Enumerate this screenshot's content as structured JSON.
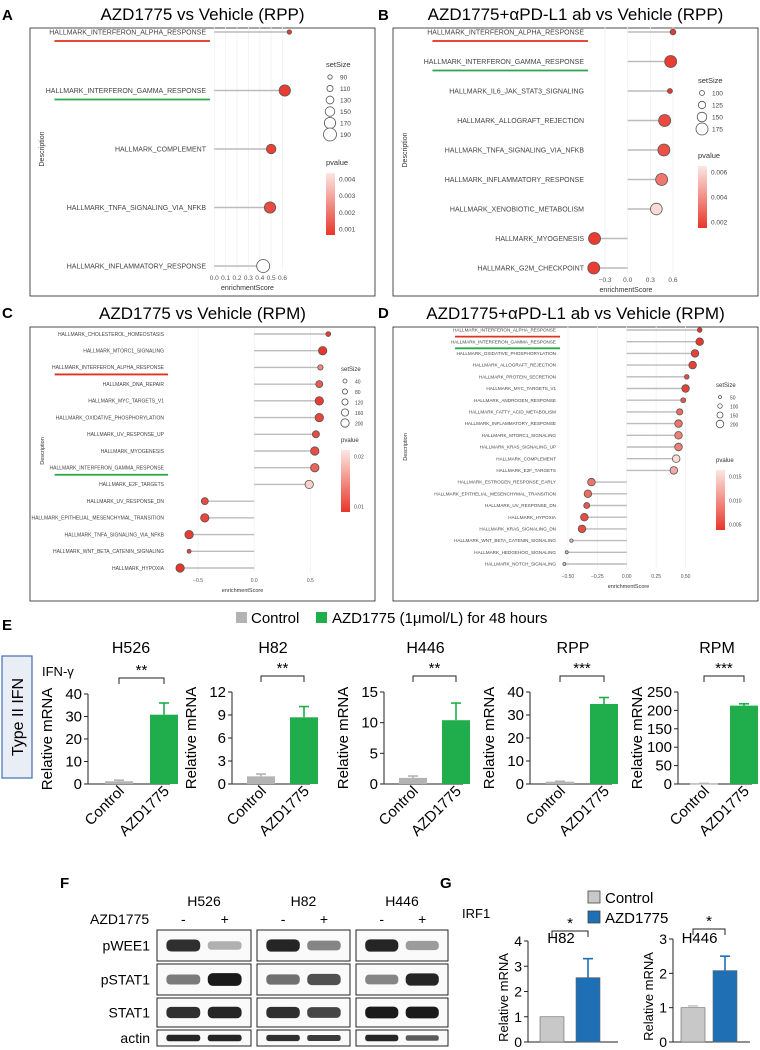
{
  "colors": {
    "control": "#b3b3b3",
    "azd_green": "#1fae4b",
    "azd_blue": "#1f6fb5",
    "underline_red": "#e0301e",
    "underline_green": "#29a84a",
    "box_border": "#3f6fb0",
    "box_fill": "#e9eef6",
    "pv_low": "#e8362b",
    "pv_high": "#fbe7e1"
  },
  "panelLabels": {
    "A": "A",
    "B": "B",
    "C": "C",
    "D": "D",
    "E": "E",
    "F": "F",
    "G": "G"
  },
  "lollipops": [
    {
      "id": "A",
      "title": "AZD1775 vs Vehicle (RPP)",
      "xlabel": "enrichmentScore",
      "ylabel": "Description",
      "xlim": [
        -0.02,
        0.78
      ],
      "xticks": [
        0.0,
        0.1,
        0.2,
        0.3,
        0.4,
        0.5,
        0.6
      ],
      "xtick_labels": [
        "0.0",
        "0.1",
        "0.2",
        "0.3",
        "0.4",
        "0.5",
        "0.6"
      ],
      "size_title": "setSize",
      "size_values": [
        "90",
        "110",
        "130",
        "150",
        "170",
        "190"
      ],
      "pv_title": "pvalue",
      "pv_ticks": [
        "0.004",
        "0.003",
        "0.002",
        "0.001"
      ],
      "terms": [
        "HALLMARK_INTERFERON_ALPHA_RESPONSE",
        "HALLMARK_INTERFERON_GAMMA_RESPONSE",
        "HALLMARK_COMPLEMENT",
        "HALLMARK_TNFA_SIGNALING_VIA_NFKB",
        "HALLMARK_INFLAMMATORY_RESPONSE"
      ],
      "scores": [
        0.66,
        0.62,
        0.5,
        0.49,
        0.43
      ],
      "set_sizes": [
        90,
        170,
        150,
        170,
        190
      ],
      "pvalues": [
        0.0003,
        0.0004,
        0.0005,
        0.0008,
        0.0048
      ],
      "underlines": {
        "0": "red",
        "1": "green"
      }
    },
    {
      "id": "B",
      "title": "AZD1775+αPD-L1 ab vs Vehicle (RPP)",
      "xlabel": "enrichmentScore",
      "ylabel": "Description",
      "xlim": [
        -0.5,
        0.72
      ],
      "xticks": [
        -0.3,
        0.0,
        0.3,
        0.6
      ],
      "xtick_labels": [
        "−0.3",
        "0.0",
        "0.3",
        "0.6"
      ],
      "size_title": "setSize",
      "size_values": [
        "100",
        "125",
        "150",
        "175"
      ],
      "pv_title": "pvalue",
      "pv_ticks": [
        "0.006",
        "0.004",
        "0.002"
      ],
      "terms": [
        "HALLMARK_INTERFERON_ALPHA_RESPONSE",
        "HALLMARK_INTERFERON_GAMMA_RESPONSE",
        "HALLMARK_IL6_JAK_STAT3_SIGNALING",
        "HALLMARK_ALLOGRAFT_REJECTION",
        "HALLMARK_TNFA_SIGNALING_VIA_NFKB",
        "HALLMARK_INFLAMMATORY_RESPONSE",
        "HALLMARK_XENOBIOTIC_METABOLISM",
        "HALLMARK_MYOGENESIS",
        "HALLMARK_G2M_CHECKPOINT"
      ],
      "scores": [
        0.6,
        0.57,
        0.56,
        0.49,
        0.48,
        0.45,
        0.38,
        -0.44,
        -0.45
      ],
      "set_sizes": [
        90,
        175,
        80,
        175,
        175,
        175,
        170,
        175,
        175
      ],
      "pvalues": [
        0.0005,
        0.0007,
        0.0005,
        0.0012,
        0.0015,
        0.003,
        0.007,
        0.0006,
        0.0007
      ],
      "underlines": {
        "0": "red",
        "1": "green"
      }
    },
    {
      "id": "C",
      "title": "AZD1775 vs Vehicle (RPM)",
      "xlabel": "enrichmentScore",
      "ylabel": "Description",
      "xlim": [
        -0.75,
        0.72
      ],
      "xticks": [
        -0.5,
        0.0,
        0.5
      ],
      "xtick_labels": [
        "−0.5",
        "0.0",
        "0.5"
      ],
      "size_title": "setSize",
      "size_values": [
        "40",
        "80",
        "120",
        "160",
        "200"
      ],
      "pv_title": "pvalue",
      "pv_ticks": [
        "0.02",
        "0.01"
      ],
      "terms": [
        "HALLMARK_CHOLESTEROL_HOMEOSTASIS",
        "HALLMARK_MTORC1_SIGNALING",
        "HALLMARK_INTERFERON_ALPHA_RESPONSE",
        "HALLMARK_DNA_REPAIR",
        "HALLMARK_MYC_TARGETS_V1",
        "HALLMARK_OXIDATIVE_PHOSPHORYLATION",
        "HALLMARK_UV_RESPONSE_UP",
        "HALLMARK_MYOGENESIS",
        "HALLMARK_INTERFERON_GAMMA_RESPONSE",
        "HALLMARK_E2F_TARGETS",
        "HALLMARK_UV_RESPONSE_DN",
        "HALLMARK_EPITHELIAL_MESENCHYMAL_TRANSITION",
        "HALLMARK_TNFA_SIGNALING_VIA_NFKB",
        "HALLMARK_WNT_BETA_CATENIN_SIGNALING",
        "HALLMARK_HYPOXIA"
      ],
      "scores": [
        0.66,
        0.61,
        0.59,
        0.58,
        0.58,
        0.58,
        0.55,
        0.54,
        0.54,
        0.49,
        -0.44,
        -0.44,
        -0.58,
        -0.58,
        -0.66
      ],
      "set_sizes": [
        70,
        200,
        90,
        150,
        200,
        200,
        150,
        200,
        200,
        200,
        150,
        200,
        200,
        40,
        200
      ],
      "pvalues": [
        0.002,
        0.001,
        0.012,
        0.006,
        0.002,
        0.003,
        0.004,
        0.004,
        0.007,
        0.022,
        0.004,
        0.003,
        0.002,
        0.003,
        0.001
      ],
      "underlines": {
        "2": "red",
        "8": "green"
      }
    },
    {
      "id": "D",
      "title": "AZD1775+αPD-L1 ab vs Vehicle (RPM)",
      "xlabel": "enrichmentScore",
      "ylabel": "Description",
      "xlim": [
        -0.55,
        0.75
      ],
      "xticks": [
        -0.5,
        -0.25,
        0.0,
        0.25,
        0.5
      ],
      "xtick_labels": [
        "−0.50",
        "−0.25",
        "0.00",
        "0.25",
        "0.50"
      ],
      "size_title": "setSize",
      "size_values": [
        "50",
        "100",
        "150",
        "200"
      ],
      "pv_title": "pvalue",
      "pv_ticks": [
        "0.015",
        "0.010",
        "0.005"
      ],
      "terms": [
        "HALLMARK_INTERFERON_ALPHA_RESPONSE",
        "HALLMARK_INTERFERON_GAMMA_RESPONSE",
        "HALLMARK_OXIDATIVE_PHOSPHORYLATION",
        "HALLMARK_ALLOGRAFT_REJECTION",
        "HALLMARK_PROTEIN_SECRETION",
        "HALLMARK_MYC_TARGETS_V1",
        "HALLMARK_ANDROGEN_RESPONSE",
        "HALLMARK_FATTY_ACID_METABOLISM",
        "HALLMARK_INFLAMMATORY_RESPONSE",
        "HALLMARK_MTORC1_SIGNALING",
        "HALLMARK_KRAS_SIGNALING_UP",
        "HALLMARK_COMPLEMENT",
        "HALLMARK_E2F_TARGETS",
        "HALLMARK_ESTROGEN_RESPONSE_EARLY",
        "HALLMARK_EPITHELIAL_MESENCHYMAL_TRANSITION",
        "HALLMARK_UV_RESPONSE_DN",
        "HALLMARK_HYPOXIA",
        "HALLMARK_KRAS_SIGNALING_DN",
        "HALLMARK_WNT_BETA_CATENIN_SIGNALING",
        "HALLMARK_HEDGEHOG_SIGNALING",
        "HALLMARK_NOTCH_SIGNALING"
      ],
      "scores": [
        0.62,
        0.62,
        0.58,
        0.56,
        0.51,
        0.5,
        0.48,
        0.45,
        0.44,
        0.44,
        0.44,
        0.42,
        0.4,
        -0.3,
        -0.33,
        -0.34,
        -0.36,
        -0.38,
        -0.47,
        -0.51,
        -0.53
      ],
      "set_sizes": [
        90,
        200,
        200,
        200,
        90,
        200,
        100,
        150,
        200,
        200,
        200,
        200,
        200,
        200,
        200,
        140,
        200,
        200,
        40,
        30,
        30
      ],
      "pvalues": [
        0.001,
        0.001,
        0.002,
        0.002,
        0.003,
        0.002,
        0.004,
        0.006,
        0.007,
        0.008,
        0.008,
        0.017,
        0.012,
        0.007,
        0.006,
        0.004,
        0.003,
        0.003,
        0.015,
        0.015,
        0.015
      ],
      "underlines": {
        "0": "red",
        "1": "green"
      }
    }
  ],
  "panelE": {
    "legend": {
      "control": "Control",
      "treated": "AZD1775 (1μmol/L) for 48 hours"
    },
    "side_label": "Type II IFN",
    "gene": "IFN-γ",
    "ylabel": "Relative mRNA",
    "categories": [
      "Control",
      "AZD1775"
    ]
  },
  "chart_data": [
    {
      "type": "bar",
      "title": "H526",
      "categories": [
        "Control",
        "AZD1775"
      ],
      "values": [
        1.2,
        30.8
      ],
      "errors": [
        0.5,
        5.2
      ],
      "ylim": [
        0,
        40
      ],
      "yticks": [
        0,
        10,
        20,
        30,
        40
      ],
      "ytick_labels": [
        "0",
        "10",
        "20",
        "30",
        "40"
      ],
      "significance": "**",
      "ylabel": "Relative mRNA",
      "xlabel": ""
    },
    {
      "type": "bar",
      "title": "H82",
      "categories": [
        "Control",
        "AZD1775"
      ],
      "values": [
        1.0,
        8.7
      ],
      "errors": [
        0.3,
        1.4
      ],
      "ylim": [
        0,
        12
      ],
      "yticks": [
        0,
        3,
        6,
        9,
        12
      ],
      "ytick_labels": [
        "0",
        "3",
        "6",
        "9",
        "12"
      ],
      "significance": "**",
      "ylabel": "Relative mRNA",
      "xlabel": ""
    },
    {
      "type": "bar",
      "title": "H446",
      "categories": [
        "Control",
        "AZD1775"
      ],
      "values": [
        1.0,
        10.4
      ],
      "errors": [
        0.3,
        2.8
      ],
      "ylim": [
        0,
        15
      ],
      "yticks": [
        0,
        5,
        10,
        15
      ],
      "ytick_labels": [
        "0",
        "5",
        "10",
        "15"
      ],
      "significance": "**",
      "ylabel": "Relative mRNA",
      "xlabel": ""
    },
    {
      "type": "bar",
      "title": "RPP",
      "categories": [
        "Control",
        "AZD1775"
      ],
      "values": [
        1.0,
        34.8
      ],
      "errors": [
        0.2,
        2.8
      ],
      "ylim": [
        0,
        40
      ],
      "yticks": [
        0,
        10,
        20,
        30,
        40
      ],
      "ytick_labels": [
        "0",
        "10",
        "20",
        "30",
        "40"
      ],
      "significance": "***",
      "ylabel": "Relative mRNA",
      "xlabel": ""
    },
    {
      "type": "bar",
      "title": "RPM",
      "categories": [
        "Control",
        "AZD1775"
      ],
      "values": [
        1.0,
        213
      ],
      "errors": [
        0.5,
        5
      ],
      "ylim": [
        0,
        250
      ],
      "yticks": [
        0,
        50,
        100,
        150,
        200,
        250
      ],
      "ytick_labels": [
        "0",
        "50",
        "100",
        "150",
        "200",
        "250"
      ],
      "significance": "***",
      "ylabel": "Relative mRNA",
      "xlabel": ""
    },
    {
      "type": "bar",
      "title": "H82",
      "categories": [
        "Control",
        "AZD1775"
      ],
      "values": [
        1.0,
        2.55
      ],
      "errors": [
        0,
        0.75
      ],
      "ylim": [
        0,
        4
      ],
      "yticks": [
        0,
        1,
        2,
        3,
        4
      ],
      "ytick_labels": [
        "0",
        "1",
        "2",
        "3",
        "4"
      ],
      "significance": "*",
      "ylabel": "Relative mRNA",
      "xlabel": ""
    },
    {
      "type": "bar",
      "title": "H446",
      "categories": [
        "Control",
        "AZD1775"
      ],
      "values": [
        1.0,
        2.08
      ],
      "errors": [
        0.05,
        0.42
      ],
      "ylim": [
        0,
        3
      ],
      "yticks": [
        0,
        1,
        2,
        3
      ],
      "ytick_labels": [
        "0",
        "1",
        "2",
        "3"
      ],
      "significance": "*",
      "ylabel": "Relative mRNA",
      "xlabel": ""
    }
  ],
  "panelF": {
    "treatment": "AZD1775",
    "cell_lines": [
      "H526",
      "H82",
      "H446"
    ],
    "lanes": [
      "-",
      "+"
    ],
    "proteins": [
      "pWEE1",
      "pSTAT1",
      "STAT1",
      "actin"
    ],
    "band_intensity": [
      [
        [
          0.85,
          0.25
        ],
        [
          0.9,
          0.45
        ],
        [
          0.9,
          0.35
        ]
      ],
      [
        [
          0.5,
          0.95
        ],
        [
          0.55,
          0.7
        ],
        [
          0.45,
          0.9
        ]
      ],
      [
        [
          0.85,
          0.9
        ],
        [
          0.85,
          0.75
        ],
        [
          0.95,
          0.95
        ]
      ],
      [
        [
          0.9,
          0.9
        ],
        [
          0.85,
          0.8
        ],
        [
          0.9,
          0.65
        ]
      ]
    ]
  },
  "panelG": {
    "gene": "IRF1",
    "legend": {
      "control": "Control",
      "treated": "AZD1775"
    },
    "ylabel": "Relative mRNA"
  }
}
